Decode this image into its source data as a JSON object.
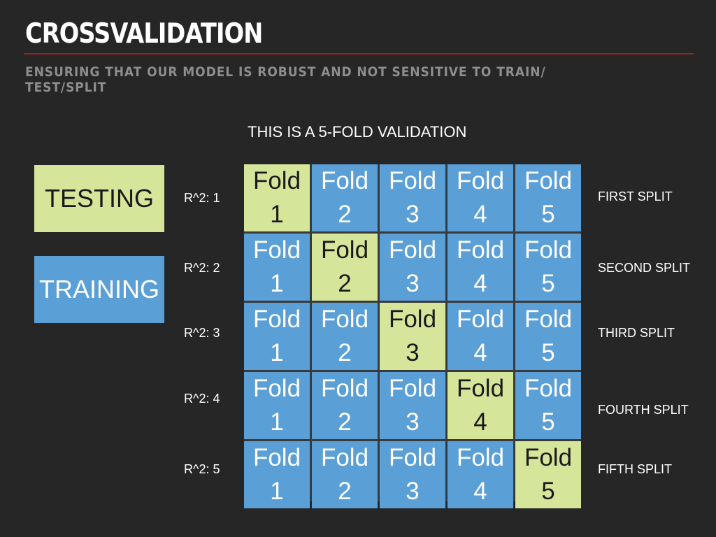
{
  "title": "CROSSVALIDATION",
  "subtitle": "ENSURING THAT OUR MODEL IS ROBUST AND NOT SENSITIVE TO TRAIN/ TEST/SPLIT",
  "caption": "THIS IS A 5-FOLD VALIDATION",
  "legend": {
    "testing": "TESTING",
    "training": "TRAINING"
  },
  "colors": {
    "background": "#262626",
    "testing": "#d5e69b",
    "training": "#5a9fd6",
    "rule": "#8a2a2a"
  },
  "rows": [
    {
      "score": "R^2: 1",
      "split": "FIRST SPLIT",
      "test_fold": 1,
      "cells": [
        {
          "word": "Fold",
          "num": "1"
        },
        {
          "word": "Fold",
          "num": "2"
        },
        {
          "word": "Fold",
          "num": "3"
        },
        {
          "word": "Fold",
          "num": "4"
        },
        {
          "word": "Fold",
          "num": "5"
        }
      ]
    },
    {
      "score": "R^2: 2",
      "split": "SECOND SPLIT",
      "test_fold": 2,
      "cells": [
        {
          "word": "Fold",
          "num": "1"
        },
        {
          "word": "Fold",
          "num": "2"
        },
        {
          "word": "Fold",
          "num": "3"
        },
        {
          "word": "Fold",
          "num": "4"
        },
        {
          "word": "Fold",
          "num": "5"
        }
      ]
    },
    {
      "score": "R^2: 3",
      "split": "THIRD SPLIT",
      "test_fold": 3,
      "cells": [
        {
          "word": "Fold",
          "num": "1"
        },
        {
          "word": "Fold",
          "num": "2"
        },
        {
          "word": "Fold",
          "num": "3"
        },
        {
          "word": "Fold",
          "num": "4"
        },
        {
          "word": "Fold",
          "num": "5"
        }
      ]
    },
    {
      "score": "R^2: 4",
      "split": "FOURTH SPLIT",
      "test_fold": 4,
      "cells": [
        {
          "word": "Fold",
          "num": "1"
        },
        {
          "word": "Fold",
          "num": "2"
        },
        {
          "word": "Fold",
          "num": "3"
        },
        {
          "word": "Fold",
          "num": "4"
        },
        {
          "word": "Fold",
          "num": "5"
        }
      ]
    },
    {
      "score": "R^2: 5",
      "split": "FIFTH SPLIT",
      "test_fold": 5,
      "cells": [
        {
          "word": "Fold",
          "num": "1"
        },
        {
          "word": "Fold",
          "num": "2"
        },
        {
          "word": "Fold",
          "num": "3"
        },
        {
          "word": "Fold",
          "num": "4"
        },
        {
          "word": "Fold",
          "num": "5"
        }
      ]
    }
  ]
}
